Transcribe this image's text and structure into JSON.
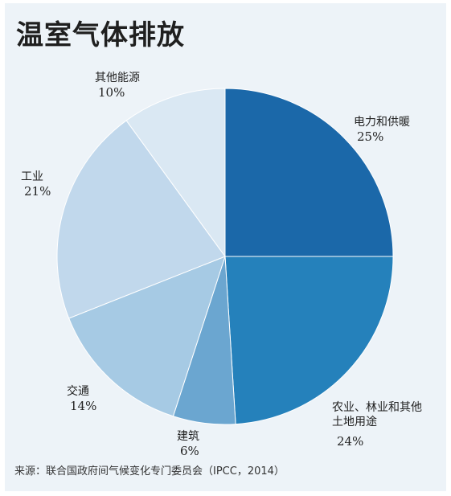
{
  "title": "温室气体排放",
  "source": "来源：联合国政府间气候变化专门委员会（IPCC，2014）",
  "chart_data": {
    "type": "pie",
    "title": "温室气体排放",
    "slices": [
      {
        "label": "电力和供暖",
        "value": 25,
        "pct_label": "25%",
        "color": "#1b68a9"
      },
      {
        "label": "农业、林业和其他\n土地用途",
        "value": 24,
        "pct_label": "24%",
        "color": "#2581bb"
      },
      {
        "label": "建筑",
        "value": 6,
        "pct_label": "6%",
        "color": "#6ba6d0"
      },
      {
        "label": "交通",
        "value": 14,
        "pct_label": "14%",
        "color": "#a6cae4"
      },
      {
        "label": "工业",
        "value": 21,
        "pct_label": "21%",
        "color": "#c1d8ec"
      },
      {
        "label": "其他能源",
        "value": 10,
        "pct_label": "10%",
        "color": "#dae8f3"
      }
    ]
  }
}
